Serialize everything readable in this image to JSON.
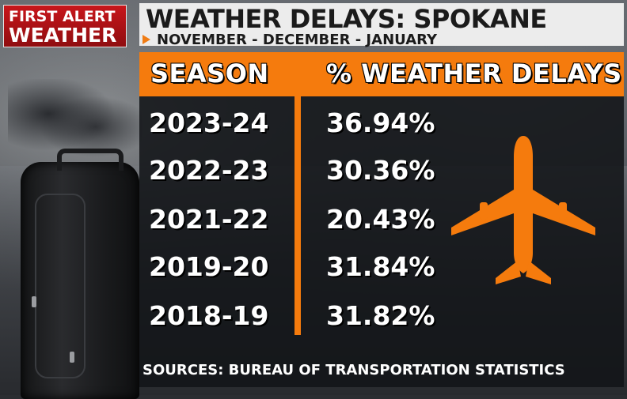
{
  "logo": {
    "line1": "FIRST ALERT",
    "line2": "WEATHER"
  },
  "title": "WEATHER DELAYS: SPOKANE",
  "subtitle": "NOVEMBER - DECEMBER - JANUARY",
  "table": {
    "headers": {
      "season": "SEASON",
      "pct": "% WEATHER DELAYS"
    },
    "rows": [
      {
        "season": "2023-24",
        "pct": "36.94%"
      },
      {
        "season": "2022-23",
        "pct": "30.36%"
      },
      {
        "season": "2021-22",
        "pct": "20.43%"
      },
      {
        "season": "2019-20",
        "pct": "31.84%"
      },
      {
        "season": "2018-19",
        "pct": "31.82%"
      }
    ]
  },
  "source": "SOURCES: BUREAU OF TRANSPORTATION STATISTICS",
  "colors": {
    "accent": "#f57b0d",
    "logo_red": "#c8161b",
    "banner": "#ececec"
  },
  "icons": [
    "play-icon",
    "airplane-icon"
  ]
}
